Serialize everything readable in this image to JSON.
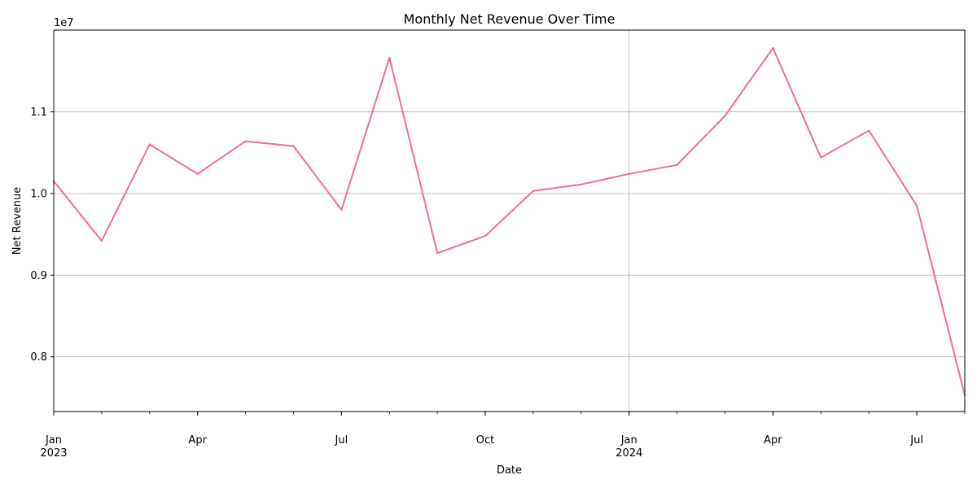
{
  "chart_data": {
    "type": "line",
    "title": "Monthly Net Revenue Over Time",
    "xlabel": "Date",
    "ylabel": "Net Revenue",
    "offset_label": "1e7",
    "x": [
      "2023-01",
      "2023-02",
      "2023-03",
      "2023-04",
      "2023-05",
      "2023-06",
      "2023-07",
      "2023-08",
      "2023-09",
      "2023-10",
      "2023-11",
      "2023-12",
      "2024-01",
      "2024-02",
      "2024-03",
      "2024-04",
      "2024-05",
      "2024-06",
      "2024-07",
      "2024-08"
    ],
    "series": [
      {
        "color": "#f07088",
        "values": [
          10150000,
          9420000,
          10600000,
          10240000,
          10640000,
          10580000,
          9800000,
          11660000,
          9270000,
          9480000,
          10030000,
          10110000,
          10240000,
          10350000,
          10950000,
          11780000,
          10440000,
          10770000,
          9850000,
          7530000
        ]
      }
    ],
    "ylim": [
      7330000,
      12000000
    ],
    "y_ticks": [
      {
        "value": 8000000,
        "label": "0.8"
      },
      {
        "value": 9000000,
        "label": "0.9"
      },
      {
        "value": 10000000,
        "label": "1.0"
      },
      {
        "value": 11000000,
        "label": "1.1"
      }
    ],
    "x_major_ticks": [
      {
        "index": 0,
        "label": "Jan",
        "sublabel": "2023"
      },
      {
        "index": 3,
        "label": "Apr",
        "sublabel": ""
      },
      {
        "index": 6,
        "label": "Jul",
        "sublabel": ""
      },
      {
        "index": 9,
        "label": "Oct",
        "sublabel": ""
      },
      {
        "index": 12,
        "label": "Jan",
        "sublabel": "2024"
      },
      {
        "index": 15,
        "label": "Apr",
        "sublabel": ""
      },
      {
        "index": 18,
        "label": "Jul",
        "sublabel": ""
      }
    ],
    "grid": true,
    "legend": "none"
  }
}
